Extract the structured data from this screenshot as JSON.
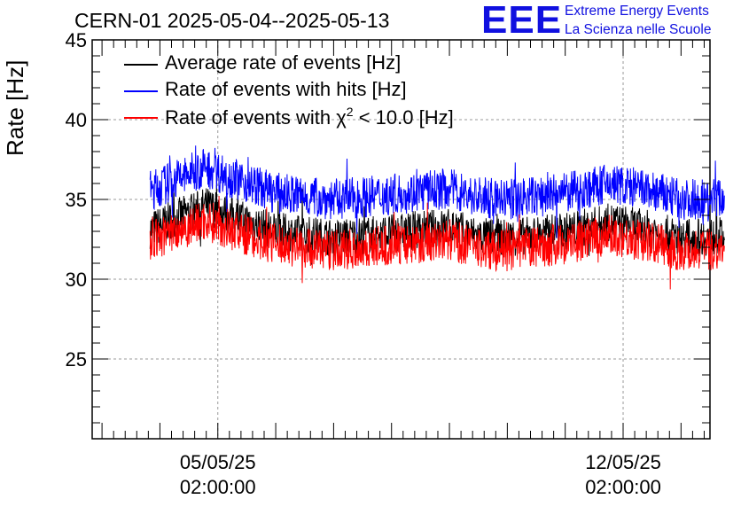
{
  "chart_data": {
    "type": "line",
    "title": "CERN-01 2025-05-04--2025-05-13",
    "ylabel": "Rate [Hz]",
    "ylim": [
      20,
      45
    ],
    "yticks": [
      25,
      30,
      35,
      40,
      45
    ],
    "xticks": [
      {
        "line1": "05/05/25",
        "line2": "02:00:00",
        "day": 1.0
      },
      {
        "line1": "12/05/25",
        "line2": "02:00:00",
        "day": 8.0
      }
    ],
    "xlim_days": [
      -1.17,
      9.5
    ],
    "grid": true,
    "legend_position": "top-left",
    "series": [
      {
        "name": "Average rate of events [Hz]",
        "color": "#000000",
        "x_days": [
          -0.17,
          0.3,
          0.8,
          1.3,
          2.0,
          3.0,
          4.0,
          5.0,
          5.5,
          6.0,
          7.0,
          7.8,
          8.5,
          9.0,
          9.75
        ],
        "y": [
          33.1,
          33.9,
          34.6,
          33.9,
          33.0,
          32.6,
          32.9,
          33.3,
          32.7,
          32.6,
          33.0,
          33.6,
          33.1,
          32.6,
          32.7
        ]
      },
      {
        "name": "Rate of events with hits [Hz]",
        "color": "#0000ff",
        "x_days": [
          -0.17,
          0.3,
          0.8,
          1.3,
          2.0,
          3.0,
          4.0,
          5.0,
          5.5,
          6.0,
          7.0,
          7.8,
          8.5,
          9.0,
          9.75
        ],
        "y": [
          35.5,
          36.3,
          37.0,
          36.3,
          35.4,
          35.0,
          35.3,
          35.7,
          35.1,
          35.0,
          35.4,
          36.0,
          35.5,
          35.0,
          35.1
        ]
      },
      {
        "name_prefix": "Rate of events with ",
        "name_symbol": "χ",
        "name_sup": "2",
        "name_suffix": " < 10.0 [Hz]",
        "color": "#ff0000",
        "x_days": [
          -0.17,
          0.3,
          0.8,
          1.3,
          2.0,
          3.0,
          4.0,
          5.0,
          5.5,
          6.0,
          7.0,
          7.8,
          8.5,
          9.0,
          9.75
        ],
        "y": [
          32.3,
          33.1,
          33.7,
          33.0,
          32.2,
          31.8,
          32.1,
          32.5,
          31.9,
          31.8,
          32.2,
          32.8,
          32.3,
          31.8,
          31.9
        ]
      }
    ]
  },
  "logo": {
    "mark": "EEE",
    "line1": "Extreme Energy Events",
    "line2": "La Scienza nelle Scuole",
    "color": "#1010e0"
  }
}
